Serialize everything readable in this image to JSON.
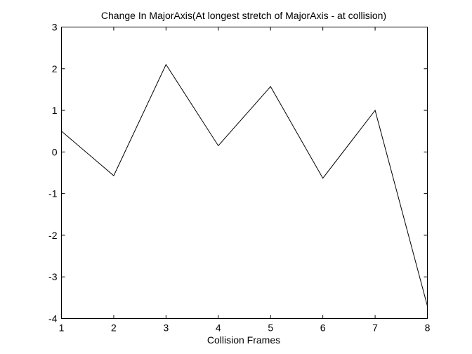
{
  "chart_data": {
    "type": "line",
    "title": "Change In MajorAxis(At longest stretch of MajorAxis - at collision)",
    "xlabel": "Collision Frames",
    "ylabel": "",
    "xlim": [
      1,
      8
    ],
    "ylim": [
      -4,
      3
    ],
    "xticks": [
      1,
      2,
      3,
      4,
      5,
      6,
      7,
      8
    ],
    "yticks": [
      -4,
      -3,
      -2,
      -1,
      0,
      1,
      2,
      3
    ],
    "grid": false,
    "series": [
      {
        "x": [
          1,
          2,
          3,
          4,
          5,
          6,
          7,
          8
        ],
        "values": [
          0.5,
          -0.57,
          2.1,
          0.15,
          1.57,
          -0.63,
          1.0,
          -3.7
        ],
        "color": "#000000"
      }
    ]
  }
}
